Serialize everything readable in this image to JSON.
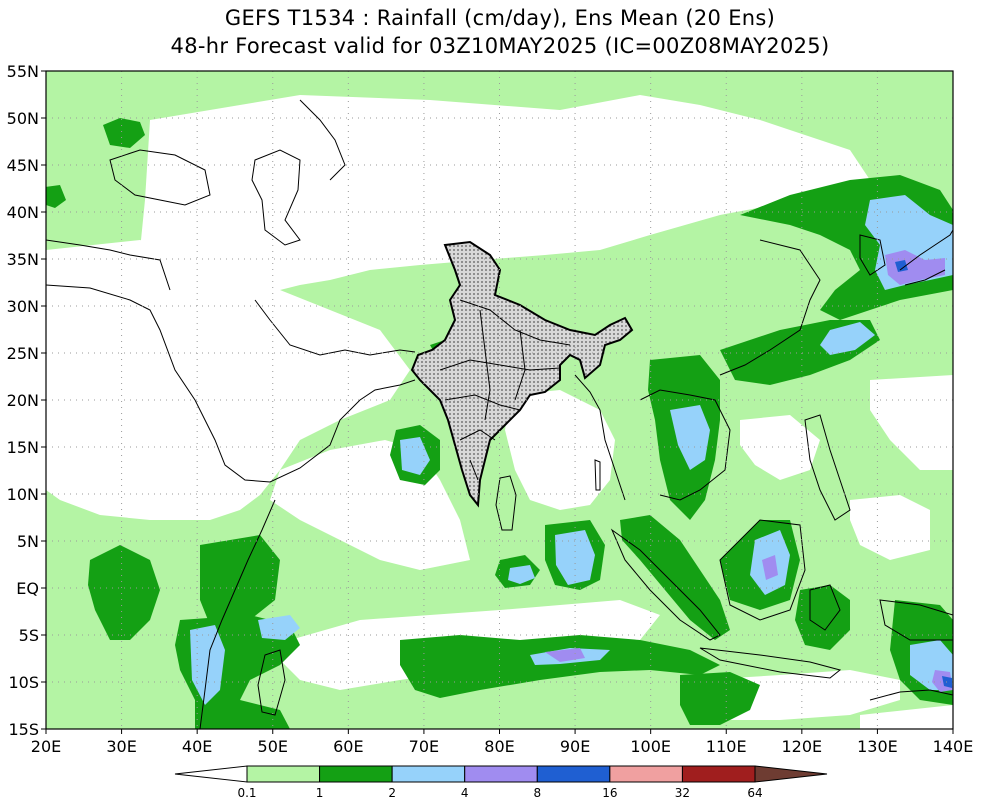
{
  "title": {
    "line1": "GEFS T1534 : Rainfall (cm/day), Ens Mean (20 Ens)",
    "line2": "48-hr Forecast valid for 03Z10MAY2025 (IC=00Z08MAY2025)"
  },
  "map": {
    "lon_range": [
      20,
      140
    ],
    "lat_range": [
      -15,
      55
    ],
    "lat_ticks": [
      {
        "v": 55,
        "label": "55N"
      },
      {
        "v": 50,
        "label": "50N"
      },
      {
        "v": 45,
        "label": "45N"
      },
      {
        "v": 40,
        "label": "40N"
      },
      {
        "v": 35,
        "label": "35N"
      },
      {
        "v": 30,
        "label": "30N"
      },
      {
        "v": 25,
        "label": "25N"
      },
      {
        "v": 20,
        "label": "20N"
      },
      {
        "v": 15,
        "label": "15N"
      },
      {
        "v": 10,
        "label": "10N"
      },
      {
        "v": 5,
        "label": "5N"
      },
      {
        "v": 0,
        "label": "EQ"
      },
      {
        "v": -5,
        "label": "5S"
      },
      {
        "v": -10,
        "label": "10S"
      },
      {
        "v": -15,
        "label": "15S"
      }
    ],
    "lon_ticks": [
      {
        "v": 20,
        "label": "20E"
      },
      {
        "v": 30,
        "label": "30E"
      },
      {
        "v": 40,
        "label": "40E"
      },
      {
        "v": 50,
        "label": "50E"
      },
      {
        "v": 60,
        "label": "60E"
      },
      {
        "v": 70,
        "label": "70E"
      },
      {
        "v": 80,
        "label": "80E"
      },
      {
        "v": 90,
        "label": "90E"
      },
      {
        "v": 100,
        "label": "100E"
      },
      {
        "v": 110,
        "label": "110E"
      },
      {
        "v": 120,
        "label": "120E"
      },
      {
        "v": 130,
        "label": "130E"
      },
      {
        "v": 140,
        "label": "140E"
      }
    ]
  },
  "colorbar": {
    "ticks": [
      "0.1",
      "1",
      "2",
      "4",
      "8",
      "16",
      "32",
      "64"
    ],
    "colors": [
      "#ffffff",
      "#b4f4a4",
      "#14a014",
      "#96d2fa",
      "#a08cf0",
      "#1f5fd2",
      "#f0a0a0",
      "#a01e1e",
      "#6e3c32"
    ]
  },
  "colors": {
    "light_rain": "#b4f4a4",
    "moderate_rain": "#14a014",
    "heavy_rain": "#96d2fa",
    "very_heavy_rain": "#a08cf0",
    "extreme_rain": "#1f5fd2"
  }
}
